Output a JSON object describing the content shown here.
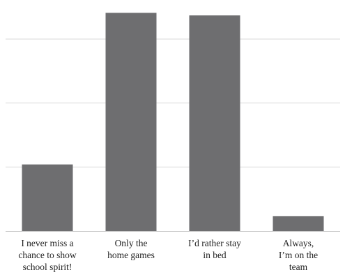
{
  "chart_data": {
    "type": "bar",
    "categories": [
      "I never miss a\nchance to show\nschool spirit!",
      "Only the\nhome games",
      "I’d rather stay\nin bed",
      "Always,\nI’m on the\nteam"
    ],
    "values": [
      10.4,
      34.1,
      33.7,
      2.3
    ],
    "ylim": [
      0,
      34.8
    ],
    "grid": true,
    "gridlines": [
      0,
      10,
      20,
      30
    ],
    "tick_labels_visible": false,
    "colors": {
      "bar": "#6e6e70",
      "grid": "#d9d9d9",
      "axis": "#bfbfbf"
    }
  }
}
